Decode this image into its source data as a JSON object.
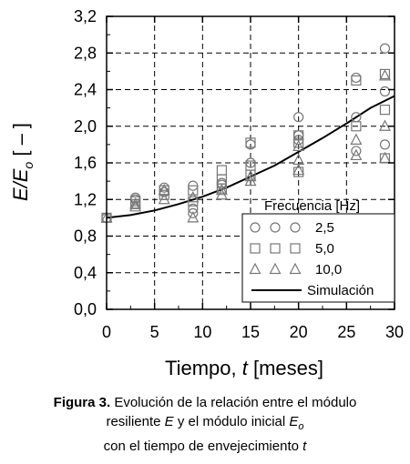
{
  "chart_data": {
    "type": "scatter",
    "xlabel_prefix": "Tiempo, ",
    "xlabel_var": "t",
    "xlabel_suffix": " [meses]",
    "ylabel_main": "E/E",
    "ylabel_sub": "o",
    "ylabel_suffix": " [ – ]",
    "xlim": [
      0,
      30
    ],
    "ylim": [
      0.0,
      3.2
    ],
    "x_ticks": [
      "0",
      "5",
      "10",
      "15",
      "20",
      "25",
      "30"
    ],
    "x_tick_values": [
      0,
      5,
      10,
      15,
      20,
      25,
      30
    ],
    "y_ticks": [
      "0,0",
      "0,4",
      "0,8",
      "1,2",
      "1,6",
      "2,0",
      "2,4",
      "2,8",
      "3,2"
    ],
    "y_tick_values": [
      0.0,
      0.4,
      0.8,
      1.2,
      1.6,
      2.0,
      2.4,
      2.8,
      3.2
    ],
    "grid": "dashed",
    "legend_title": "Frecuencia [Hz]",
    "legend_position": "bottom-right",
    "series": [
      {
        "name": "2,5",
        "marker": "circle",
        "points": [
          [
            0,
            1.0
          ],
          [
            3,
            1.2
          ],
          [
            3,
            1.22
          ],
          [
            6,
            1.33
          ],
          [
            6,
            1.28
          ],
          [
            9,
            1.35
          ],
          [
            9,
            1.1
          ],
          [
            9,
            1.05
          ],
          [
            12,
            1.36
          ],
          [
            12,
            1.38
          ],
          [
            15,
            1.8
          ],
          [
            15,
            1.6
          ],
          [
            20,
            2.1
          ],
          [
            20,
            1.9
          ],
          [
            20,
            1.85
          ],
          [
            26,
            2.53
          ],
          [
            26,
            2.1
          ],
          [
            26,
            1.73
          ],
          [
            29,
            2.85
          ],
          [
            29,
            2.38
          ],
          [
            29,
            1.8
          ]
        ]
      },
      {
        "name": "5,0",
        "marker": "square",
        "points": [
          [
            0,
            1.0
          ],
          [
            3,
            1.18
          ],
          [
            3,
            1.15
          ],
          [
            6,
            1.3
          ],
          [
            6,
            1.25
          ],
          [
            9,
            1.3
          ],
          [
            9,
            1.18
          ],
          [
            12,
            1.52
          ],
          [
            12,
            1.42
          ],
          [
            12,
            1.32
          ],
          [
            15,
            1.82
          ],
          [
            15,
            1.57
          ],
          [
            15,
            1.47
          ],
          [
            20,
            1.9
          ],
          [
            20,
            1.82
          ],
          [
            20,
            1.5
          ],
          [
            26,
            2.5
          ],
          [
            26,
            2.0
          ],
          [
            29,
            2.57
          ],
          [
            29,
            2.18
          ],
          [
            29,
            1.65
          ]
        ]
      },
      {
        "name": "10,0",
        "marker": "triangle",
        "points": [
          [
            0,
            1.0
          ],
          [
            3,
            1.15
          ],
          [
            3,
            1.12
          ],
          [
            6,
            1.3
          ],
          [
            6,
            1.2
          ],
          [
            9,
            1.22
          ],
          [
            9,
            1.0
          ],
          [
            12,
            1.3
          ],
          [
            12,
            1.25
          ],
          [
            15,
            1.45
          ],
          [
            15,
            1.4
          ],
          [
            20,
            1.63
          ],
          [
            20,
            1.78
          ],
          [
            20,
            1.52
          ],
          [
            26,
            1.85
          ],
          [
            26,
            1.68
          ],
          [
            29,
            2.55
          ],
          [
            29,
            2.0
          ],
          [
            29,
            1.65
          ]
        ]
      }
    ],
    "simulation": {
      "name": "Simulación",
      "x": [
        0,
        2.5,
        5,
        7.5,
        10,
        12.5,
        15,
        17.5,
        20,
        22.5,
        25,
        27.5,
        30
      ],
      "y": [
        1.0,
        1.03,
        1.08,
        1.15,
        1.23,
        1.33,
        1.45,
        1.57,
        1.72,
        1.87,
        2.03,
        2.2,
        2.33
      ]
    }
  },
  "caption": {
    "label": "Figura 3.",
    "line1_rest": " Evolución de la relación entre el módulo",
    "line2_pre": "resiliente ",
    "line2_E": "E",
    "line2_mid": " y el módulo inicial ",
    "line2_Eo": "E",
    "line2_Eo_sub": "o",
    "line3_pre": "con el tiempo de envejecimiento ",
    "line3_t": "t"
  }
}
